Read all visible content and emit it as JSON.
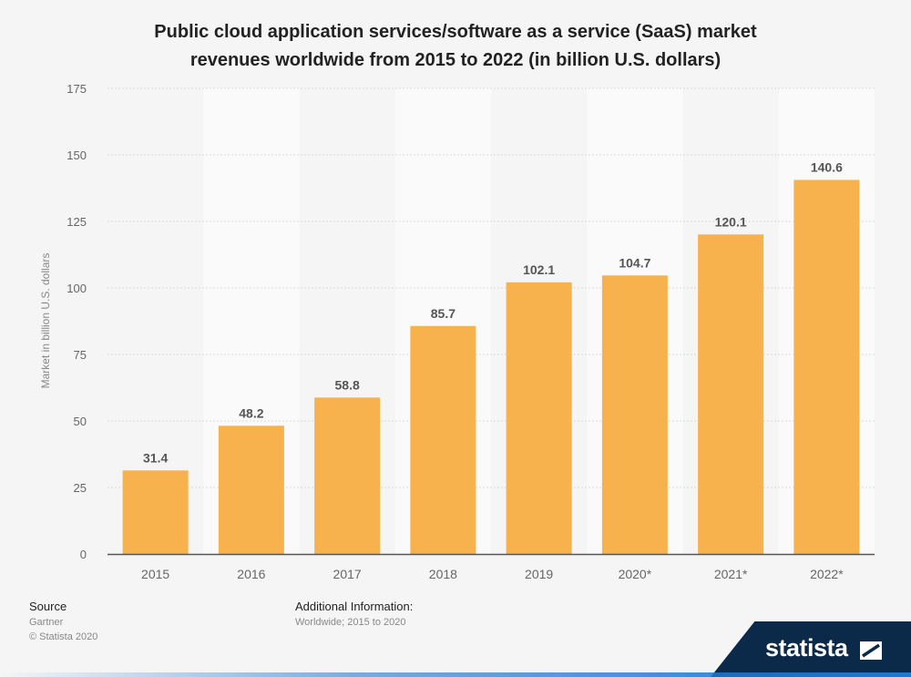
{
  "title": {
    "line1": "Public cloud application services/software as a service (SaaS) market",
    "line2": "revenues worldwide from 2015 to 2022 (in billion U.S. dollars)"
  },
  "chart_data": {
    "type": "bar",
    "categories": [
      "2015",
      "2016",
      "2017",
      "2018",
      "2019",
      "2020*",
      "2021*",
      "2022*"
    ],
    "values": [
      31.4,
      48.2,
      58.8,
      85.7,
      102.1,
      104.7,
      120.1,
      140.6
    ],
    "value_labels": [
      "31.4",
      "48.2",
      "58.8",
      "85.7",
      "102.1",
      "104.7",
      "120.1",
      "140.6"
    ],
    "ylabel": "Market in billion U.S. dollars",
    "xlabel": "",
    "ylim": [
      0,
      175
    ],
    "yticks": [
      0,
      25,
      50,
      75,
      100,
      125,
      150,
      175
    ],
    "grid": true,
    "colors": {
      "bar": "#f7b24d",
      "grid": "#d9d9d9",
      "axis": "#555555",
      "label": "#555555",
      "tick": "#666666"
    }
  },
  "footer": {
    "source_label": "Source",
    "source_value": "Gartner",
    "copyright": "© Statista 2020",
    "additional_label": "Additional Information:",
    "additional_value": "Worldwide; 2015 to 2020"
  },
  "brand": {
    "name": "statista",
    "icon": "statista-logo-icon"
  }
}
